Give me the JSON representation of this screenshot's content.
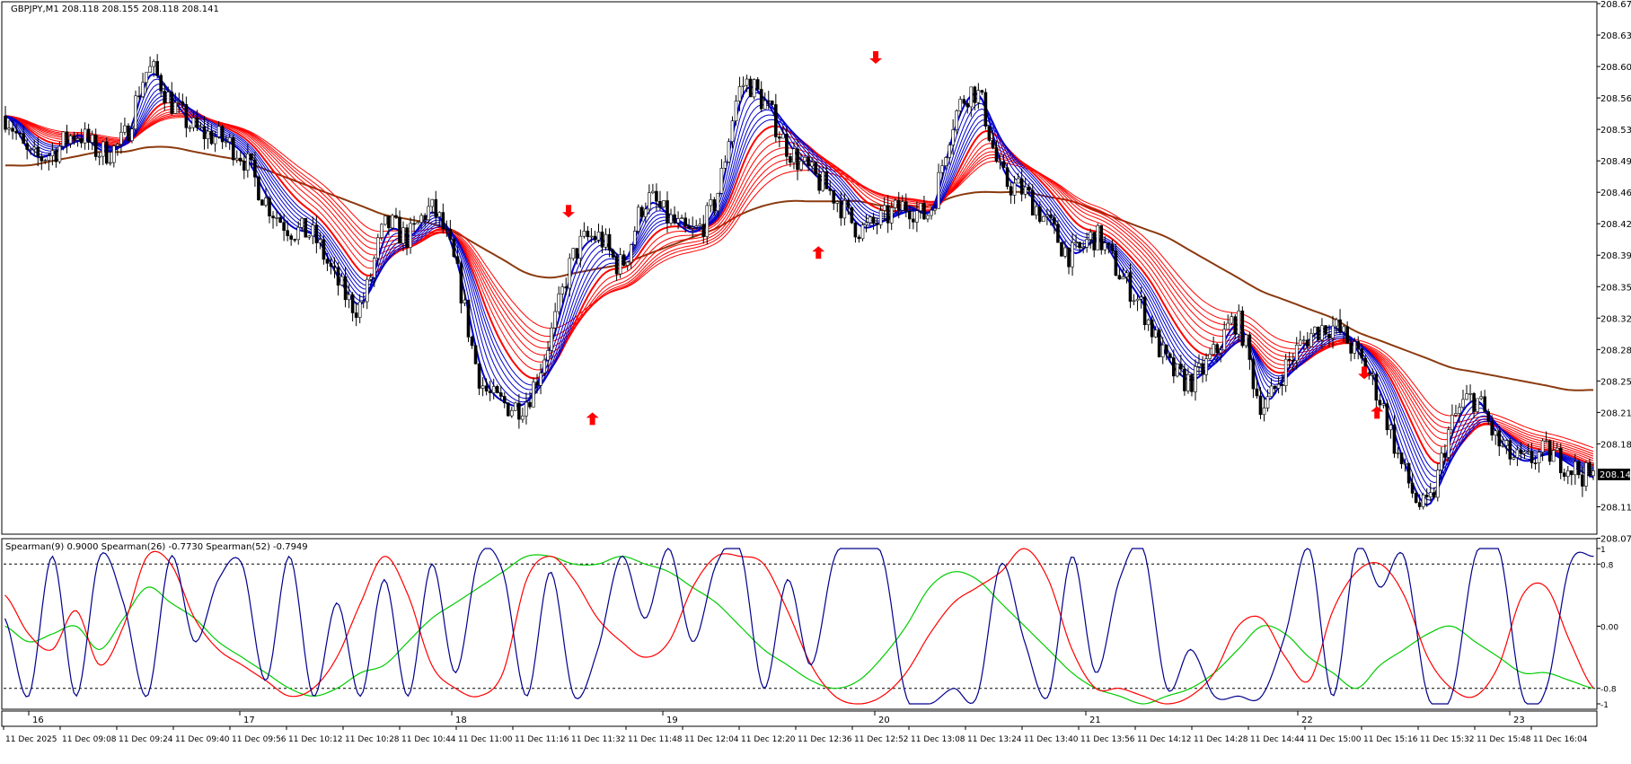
{
  "main_panel": {
    "header_text": "GBPJPY,M1  208.118 208.155 208.118 208.141",
    "current_price_label": "208.141",
    "price_ticks": [
      "208.670",
      "208.635",
      "208.600",
      "208.565",
      "208.530",
      "208.495",
      "208.460",
      "208.425",
      "208.390",
      "208.355",
      "208.320",
      "208.285",
      "208.250",
      "208.215",
      "208.180",
      "208.110",
      "208.075"
    ],
    "tick_values": [
      208.67,
      208.635,
      208.6,
      208.565,
      208.53,
      208.495,
      208.46,
      208.425,
      208.39,
      208.355,
      208.32,
      208.285,
      208.25,
      208.215,
      208.18,
      208.11,
      208.075
    ],
    "colors": {
      "candles": "#000000",
      "fast_ribbon": "#0000cc",
      "slow_ribbon": "#ff0000",
      "long_ma": "#8b3a0f",
      "buy_arrow": "#ff0000",
      "sell_arrow": "#ff0000"
    }
  },
  "sub_panel": {
    "header_text": "Spearman(9) 0.9000  Spearman(26) -0.7730  Spearman(52) -0.7949",
    "tick_labels": [
      "1",
      "0.8",
      "0.00",
      "-0.8",
      "-1"
    ],
    "tick_values": [
      1,
      0.8,
      0,
      -0.8,
      -1
    ],
    "colors": {
      "spearman9": "#00008b",
      "spearman26": "#ff0000",
      "spearman52": "#00cc00"
    }
  },
  "day_labels": [
    "16",
    "17",
    "18",
    "19",
    "20",
    "21",
    "22",
    "23"
  ],
  "time_labels": [
    "11 Dec 2025",
    "11 Dec 09:08",
    "11 Dec 09:24",
    "11 Dec 09:40",
    "11 Dec 09:56",
    "11 Dec 10:12",
    "11 Dec 10:28",
    "11 Dec 10:44",
    "11 Dec 11:00",
    "11 Dec 11:16",
    "11 Dec 11:32",
    "11 Dec 11:48",
    "11 Dec 12:04",
    "11 Dec 12:20",
    "11 Dec 12:36",
    "11 Dec 12:52",
    "11 Dec 13:08",
    "11 Dec 13:24",
    "11 Dec 13:40",
    "11 Dec 13:56",
    "11 Dec 14:12",
    "11 Dec 14:28",
    "11 Dec 14:44",
    "11 Dec 15:00",
    "11 Dec 15:16",
    "11 Dec 15:32",
    "11 Dec 15:48",
    "11 Dec 16:04"
  ],
  "chart_data": [
    {
      "type": "line",
      "title": "GBPJPY,M1",
      "ylim": [
        208.075,
        208.67
      ],
      "x_labels": [
        "11 Dec 2025",
        "11 Dec 09:08",
        "11 Dec 09:24",
        "11 Dec 09:40",
        "11 Dec 09:56",
        "11 Dec 10:12",
        "11 Dec 10:28",
        "11 Dec 10:44",
        "11 Dec 11:00",
        "11 Dec 11:16",
        "11 Dec 11:32",
        "11 Dec 11:48",
        "11 Dec 12:04",
        "11 Dec 12:20",
        "11 Dec 12:36",
        "11 Dec 12:52",
        "11 Dec 13:08",
        "11 Dec 13:24",
        "11 Dec 13:40",
        "11 Dec 13:56",
        "11 Dec 14:12",
        "11 Dec 14:28",
        "11 Dec 14:44",
        "11 Dec 15:00",
        "11 Dec 15:16",
        "11 Dec 15:32",
        "11 Dec 15:48",
        "11 Dec 16:04"
      ],
      "series": [
        {
          "values": [
            208.545,
            208.5,
            208.505,
            208.525,
            208.505,
            208.52,
            208.595,
            208.56,
            208.53,
            208.52,
            208.5,
            208.45,
            208.42,
            208.41,
            208.36,
            208.335,
            208.42,
            208.41,
            208.44,
            208.375,
            208.255,
            208.225,
            208.23,
            208.3,
            208.39,
            208.41,
            208.38,
            208.45,
            208.43,
            208.415,
            208.455,
            208.575,
            208.56,
            208.51,
            208.48,
            208.455,
            208.42,
            208.43,
            208.445,
            208.44,
            208.54,
            208.57,
            208.48,
            208.46,
            208.425,
            208.39,
            208.41,
            208.37,
            208.33,
            208.27,
            208.25,
            208.28,
            208.315,
            208.225,
            208.265,
            208.3,
            208.31,
            208.28,
            208.23,
            208.15,
            208.11,
            208.2,
            208.23,
            208.18,
            208.16,
            208.17,
            208.155,
            208.141
          ]
        },
        {
          "values": [
            208.535,
            208.525,
            208.52,
            208.52,
            208.52,
            208.52,
            208.545,
            208.545,
            208.53,
            208.52,
            208.505,
            208.465,
            208.435,
            208.42,
            208.395,
            208.39,
            208.415,
            208.415,
            208.42,
            208.4,
            208.33,
            208.3,
            208.285,
            208.3,
            208.355,
            208.37,
            208.375,
            208.4,
            208.41,
            208.415,
            208.43,
            208.5,
            208.515,
            208.5,
            208.485,
            208.47,
            208.455,
            208.45,
            208.45,
            208.445,
            208.48,
            208.5,
            208.485,
            208.475,
            208.455,
            208.44,
            208.435,
            208.415,
            208.39,
            208.36,
            208.335,
            208.32,
            208.325,
            208.3,
            208.295,
            208.3,
            208.295,
            208.28,
            208.26,
            208.235,
            208.21,
            208.21,
            208.21,
            208.2,
            208.19,
            208.185,
            208.175,
            208.17
          ]
        },
        {
          "values": [
            208.49,
            208.49,
            208.495,
            208.5,
            208.505,
            208.505,
            208.51,
            208.51,
            208.505,
            208.5,
            208.495,
            208.485,
            208.475,
            208.465,
            208.455,
            208.445,
            208.435,
            208.43,
            208.425,
            208.415,
            208.4,
            208.385,
            208.37,
            208.365,
            208.37,
            208.375,
            208.38,
            208.39,
            208.4,
            208.41,
            208.42,
            208.435,
            208.445,
            208.45,
            208.45,
            208.45,
            208.45,
            208.445,
            208.445,
            208.445,
            208.455,
            208.46,
            208.46,
            208.46,
            208.455,
            208.45,
            208.44,
            208.43,
            208.42,
            208.41,
            208.395,
            208.38,
            208.365,
            208.35,
            208.34,
            208.33,
            208.32,
            208.305,
            208.295,
            208.285,
            208.275,
            208.265,
            208.26,
            208.255,
            208.25,
            208.245,
            208.24,
            208.24
          ]
        }
      ]
    },
    {
      "type": "line",
      "title": "Spearman(9) 0.9000  Spearman(26) -0.7730  Spearman(52) -0.7949",
      "ylim": [
        -1,
        1
      ],
      "series": [
        {
          "name": "Spearman(9)",
          "values": [
            0.1,
            -0.9,
            0.9,
            -0.9,
            0.9,
            0.3,
            -0.9,
            0.9,
            -0.2,
            0.6,
            0.8,
            -0.7,
            0.9,
            -0.9,
            0.3,
            -0.9,
            0.6,
            -0.9,
            0.8,
            -0.6,
            0.9,
            0.7,
            -0.9,
            0.7,
            -0.9,
            -0.3,
            0.9,
            0.1,
            1.0,
            -0.2,
            0.8,
            1.0,
            -0.8,
            0.6,
            -0.5,
            0.9,
            1.0,
            0.9,
            -0.9,
            -1.0,
            -0.8,
            -0.9,
            0.8,
            -0.2,
            -0.9,
            0.9,
            -0.6,
            0.6,
            1.0,
            -0.8,
            -0.3,
            -0.9,
            -0.9,
            -0.9,
            -0.1,
            1.0,
            -0.9,
            1.0,
            0.5,
            0.9,
            -0.9,
            -0.9,
            0.9,
            1.0,
            -0.9,
            -0.8,
            0.8,
            0.9
          ]
        },
        {
          "name": "Spearman(26)",
          "values": [
            0.4,
            -0.1,
            -0.3,
            0.2,
            -0.5,
            0.0,
            0.9,
            0.8,
            0.1,
            -0.3,
            -0.5,
            -0.7,
            -0.9,
            -0.8,
            -0.4,
            0.3,
            0.9,
            0.4,
            -0.5,
            -0.8,
            -0.9,
            -0.6,
            0.6,
            0.9,
            0.6,
            0.1,
            -0.2,
            -0.4,
            -0.2,
            0.5,
            0.9,
            0.9,
            0.8,
            0.2,
            -0.5,
            -0.9,
            -1.0,
            -0.9,
            -0.6,
            -0.1,
            0.3,
            0.5,
            0.7,
            1.0,
            0.6,
            -0.3,
            -0.8,
            -0.8,
            -0.9,
            -1.0,
            -0.9,
            -0.6,
            0.0,
            0.1,
            -0.4,
            -0.7,
            0.2,
            0.7,
            0.8,
            0.4,
            -0.4,
            -0.8,
            -0.9,
            -0.5,
            0.4,
            0.5,
            -0.2,
            -0.8
          ]
        },
        {
          "name": "Spearman(52)",
          "values": [
            0.0,
            -0.2,
            -0.1,
            0.0,
            -0.3,
            0.1,
            0.5,
            0.3,
            0.1,
            -0.2,
            -0.4,
            -0.6,
            -0.8,
            -0.9,
            -0.8,
            -0.6,
            -0.5,
            -0.2,
            0.1,
            0.3,
            0.5,
            0.7,
            0.9,
            0.9,
            0.8,
            0.8,
            0.9,
            0.8,
            0.7,
            0.5,
            0.3,
            0.0,
            -0.3,
            -0.5,
            -0.7,
            -0.8,
            -0.7,
            -0.4,
            0.0,
            0.5,
            0.7,
            0.6,
            0.3,
            0.0,
            -0.3,
            -0.6,
            -0.8,
            -0.9,
            -1.0,
            -0.9,
            -0.8,
            -0.6,
            -0.3,
            0.0,
            -0.1,
            -0.4,
            -0.6,
            -0.8,
            -0.5,
            -0.3,
            -0.1,
            0.0,
            -0.2,
            -0.4,
            -0.6,
            -0.6,
            -0.7,
            -0.8
          ]
        }
      ]
    }
  ]
}
